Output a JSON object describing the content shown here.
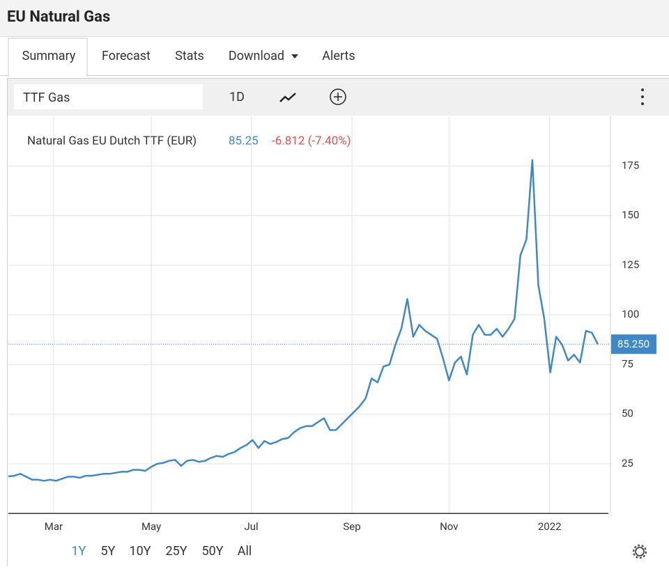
{
  "header": {
    "title": "EU Natural Gas"
  },
  "tabs": [
    "Summary",
    "Forecast",
    "Stats",
    "Download",
    "Alerts"
  ],
  "toolbar": {
    "symbol": "TTF Gas",
    "interval": "1D"
  },
  "ranges": [
    "1Y",
    "5Y",
    "10Y",
    "25Y",
    "50Y",
    "All"
  ],
  "chart_data": {
    "type": "line",
    "legend": {
      "name": "Natural Gas EU Dutch TTF (EUR)",
      "price": "85.25",
      "change": "-6.812 (-7.40%)"
    },
    "last_label": "85.250",
    "series": [
      {
        "name": "Natural Gas EU Dutch TTF (EUR)",
        "color": "#3f88c5",
        "values": [
          18.7,
          19,
          20,
          18.5,
          17,
          17,
          16.5,
          17,
          16.5,
          17.5,
          18.5,
          18.5,
          18,
          19,
          19,
          19.5,
          20,
          20,
          20.5,
          21,
          21,
          22,
          22,
          21.5,
          23.5,
          25,
          25.5,
          26.5,
          27,
          24,
          26.5,
          27,
          26,
          26.5,
          28,
          29,
          28.5,
          30,
          31,
          33,
          34.5,
          37,
          33,
          36.5,
          35,
          36,
          37.5,
          38,
          41,
          43,
          44,
          44,
          46,
          48,
          42,
          42,
          45,
          48,
          51,
          54,
          58,
          68,
          66,
          74,
          75,
          85,
          93,
          108,
          89,
          95,
          92,
          90,
          88,
          78,
          67,
          76,
          79,
          70,
          90,
          95,
          90,
          90,
          93,
          89,
          93,
          98,
          130,
          138,
          178,
          115,
          98,
          71,
          89,
          85,
          77,
          80,
          76,
          92,
          91,
          85.25
        ]
      }
    ],
    "xlim": [
      0,
      101
    ],
    "xticks": [
      {
        "value": 7.6,
        "label": "Mar"
      },
      {
        "value": 24,
        "label": "May"
      },
      {
        "value": 40.8,
        "label": "Jul"
      },
      {
        "value": 57.7,
        "label": "Sep"
      },
      {
        "value": 74,
        "label": "Nov"
      },
      {
        "value": 90.9,
        "label": "2022"
      }
    ],
    "ylim": [
      0,
      200
    ],
    "yticks": [
      25,
      50,
      75,
      100,
      125,
      150,
      175
    ],
    "grid": true
  }
}
